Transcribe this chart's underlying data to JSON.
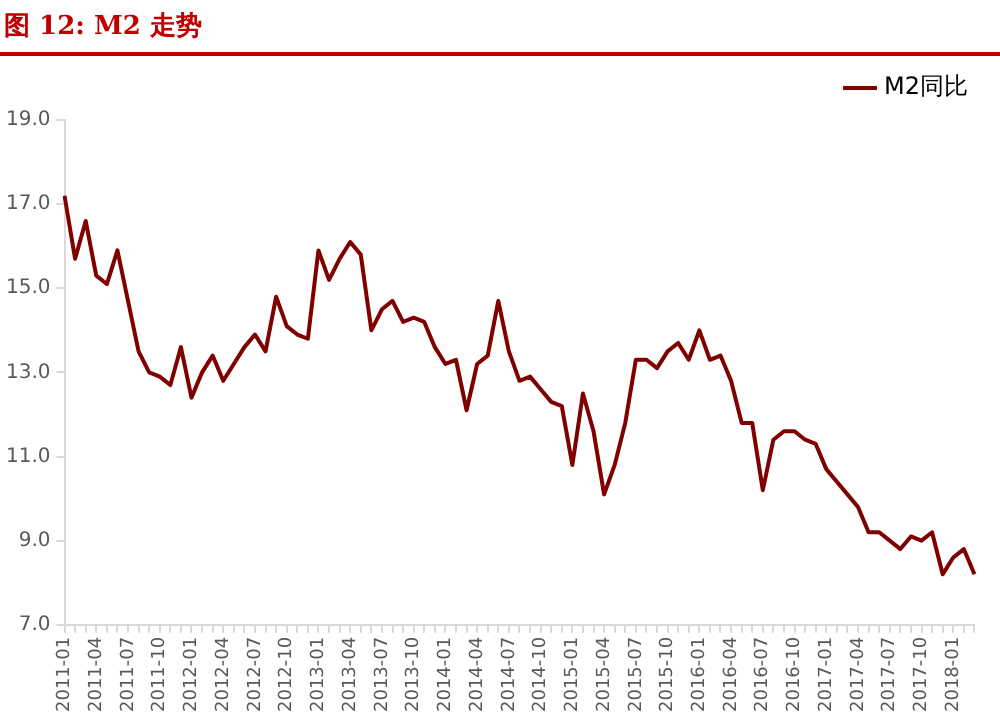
{
  "chart_data": {
    "type": "line",
    "title": "图 12:  M2 走势",
    "categories": [
      "2011-01",
      null,
      null,
      "2011-04",
      null,
      null,
      "2011-07",
      null,
      null,
      "2011-10",
      null,
      null,
      "2012-01",
      null,
      null,
      "2012-04",
      null,
      null,
      "2012-07",
      null,
      null,
      "2012-10",
      null,
      null,
      "2013-01",
      null,
      null,
      "2013-04",
      null,
      null,
      "2013-07",
      null,
      null,
      "2013-10",
      null,
      null,
      "2014-01",
      null,
      null,
      "2014-04",
      null,
      null,
      "2014-07",
      null,
      null,
      "2014-10",
      null,
      null,
      "2015-01",
      null,
      null,
      "2015-04",
      null,
      null,
      "2015-07",
      null,
      null,
      "2015-10",
      null,
      null,
      "2016-01",
      null,
      null,
      "2016-04",
      null,
      null,
      "2016-07",
      null,
      null,
      "2016-10",
      null,
      null,
      "2017-01",
      null,
      null,
      "2017-04",
      null,
      null,
      "2017-07",
      null,
      null,
      "2017-10",
      null,
      null,
      "2018-01",
      null,
      null
    ],
    "series": [
      {
        "name": "M2同比",
        "color": "#800000",
        "values": [
          17.2,
          15.7,
          16.6,
          15.3,
          15.1,
          15.9,
          14.7,
          13.5,
          13.0,
          12.9,
          12.7,
          13.6,
          12.4,
          13.0,
          13.4,
          12.8,
          13.2,
          13.6,
          13.9,
          13.5,
          14.8,
          14.1,
          13.9,
          13.8,
          15.9,
          15.2,
          15.7,
          16.1,
          15.8,
          14.0,
          14.5,
          14.7,
          14.2,
          14.3,
          14.2,
          13.6,
          13.2,
          13.3,
          12.1,
          13.2,
          13.4,
          14.7,
          13.5,
          12.8,
          12.9,
          12.6,
          12.3,
          12.2,
          10.8,
          12.5,
          11.6,
          10.1,
          10.8,
          11.8,
          13.3,
          13.3,
          13.1,
          13.5,
          13.7,
          13.3,
          14.0,
          13.3,
          13.4,
          12.8,
          11.8,
          11.8,
          10.2,
          11.4,
          11.6,
          11.6,
          11.4,
          11.3,
          10.7,
          10.4,
          10.1,
          9.8,
          9.2,
          9.2,
          9.0,
          8.8,
          9.1,
          9.0,
          9.2,
          8.2,
          8.6,
          8.8,
          8.2
        ]
      }
    ],
    "ylim": [
      7,
      19
    ],
    "yticks": [
      {
        "value": 7,
        "label": "7.0"
      },
      {
        "value": 9,
        "label": "9.0"
      },
      {
        "value": 11,
        "label": "11.0"
      },
      {
        "value": 13,
        "label": "13.0"
      },
      {
        "value": 15,
        "label": "15.0"
      },
      {
        "value": 17,
        "label": "17.0"
      },
      {
        "value": 19,
        "label": "19.0"
      }
    ],
    "legend": "top right",
    "grid": false,
    "marker": "none",
    "line_style": "solid"
  }
}
